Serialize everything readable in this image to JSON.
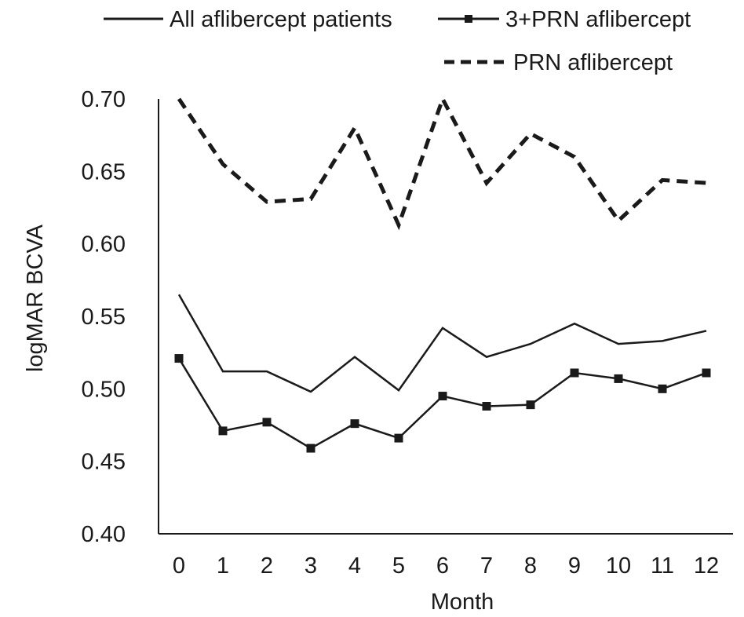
{
  "chart_data": {
    "type": "line",
    "xlabel": "Month",
    "ylabel": "logMAR BCVA",
    "ylim": [
      0.4,
      0.7
    ],
    "xlim": [
      0,
      12
    ],
    "grid": false,
    "legend_position": "top",
    "x": [
      0,
      1,
      2,
      3,
      4,
      5,
      6,
      7,
      8,
      9,
      10,
      11,
      12
    ],
    "y_ticks": [
      "0.40",
      "0.45",
      "0.50",
      "0.55",
      "0.60",
      "0.65",
      "0.70"
    ],
    "x_ticks": [
      "0",
      "1",
      "2",
      "3",
      "4",
      "5",
      "6",
      "7",
      "8",
      "9",
      "10",
      "11",
      "12"
    ],
    "series": [
      {
        "name": "All aflibercept patients",
        "style": "solid",
        "marker": "none",
        "color": "#1a1a1a",
        "values": [
          0.565,
          0.512,
          0.512,
          0.498,
          0.522,
          0.499,
          0.542,
          0.522,
          0.531,
          0.545,
          0.531,
          0.533,
          0.54
        ]
      },
      {
        "name": "3+PRN aflibercept",
        "style": "solid",
        "marker": "square",
        "color": "#1a1a1a",
        "values": [
          0.521,
          0.471,
          0.477,
          0.459,
          0.476,
          0.466,
          0.495,
          0.488,
          0.489,
          0.511,
          0.507,
          0.5,
          0.511
        ]
      },
      {
        "name": "PRN aflibercept",
        "style": "dashed",
        "marker": "none",
        "color": "#1a1a1a",
        "values": [
          0.7,
          0.655,
          0.629,
          0.631,
          0.68,
          0.613,
          0.7,
          0.642,
          0.676,
          0.66,
          0.616,
          0.644,
          0.642
        ]
      }
    ]
  }
}
